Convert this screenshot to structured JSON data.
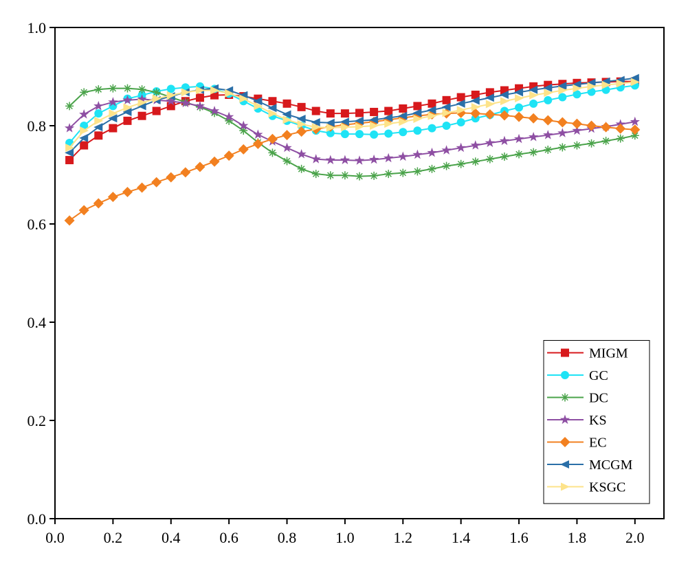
{
  "chart_data": {
    "type": "line",
    "x": [
      0.05,
      0.1,
      0.15,
      0.2,
      0.25,
      0.3,
      0.35,
      0.4,
      0.45,
      0.5,
      0.55,
      0.6,
      0.65,
      0.7,
      0.75,
      0.8,
      0.85,
      0.9,
      0.95,
      1.0,
      1.05,
      1.1,
      1.15,
      1.2,
      1.25,
      1.3,
      1.35,
      1.4,
      1.45,
      1.5,
      1.55,
      1.6,
      1.65,
      1.7,
      1.75,
      1.8,
      1.85,
      1.9,
      1.95,
      2.0
    ],
    "series": [
      {
        "name": "MIGM",
        "color": "#d7191c",
        "marker": "square",
        "values": [
          0.73,
          0.76,
          0.78,
          0.795,
          0.81,
          0.82,
          0.83,
          0.84,
          0.85,
          0.857,
          0.862,
          0.863,
          0.86,
          0.855,
          0.85,
          0.845,
          0.838,
          0.83,
          0.825,
          0.825,
          0.826,
          0.828,
          0.83,
          0.835,
          0.84,
          0.845,
          0.852,
          0.858,
          0.863,
          0.868,
          0.872,
          0.876,
          0.88,
          0.883,
          0.885,
          0.887,
          0.888,
          0.889,
          0.89,
          0.89
        ]
      },
      {
        "name": "GC",
        "color": "#1ee3f5",
        "marker": "circle",
        "values": [
          0.765,
          0.8,
          0.825,
          0.84,
          0.855,
          0.862,
          0.87,
          0.875,
          0.878,
          0.88,
          0.875,
          0.865,
          0.85,
          0.835,
          0.82,
          0.81,
          0.8,
          0.79,
          0.785,
          0.783,
          0.783,
          0.782,
          0.784,
          0.787,
          0.79,
          0.795,
          0.8,
          0.807,
          0.815,
          0.822,
          0.83,
          0.837,
          0.845,
          0.852,
          0.858,
          0.864,
          0.869,
          0.873,
          0.878,
          0.882
        ]
      },
      {
        "name": "DC",
        "color": "#4aa34a",
        "marker": "asterisk",
        "values": [
          0.84,
          0.868,
          0.874,
          0.876,
          0.876,
          0.874,
          0.868,
          0.858,
          0.848,
          0.838,
          0.826,
          0.81,
          0.79,
          0.766,
          0.745,
          0.728,
          0.712,
          0.702,
          0.699,
          0.699,
          0.697,
          0.698,
          0.702,
          0.704,
          0.707,
          0.712,
          0.718,
          0.722,
          0.727,
          0.732,
          0.737,
          0.742,
          0.746,
          0.751,
          0.756,
          0.76,
          0.764,
          0.769,
          0.774,
          0.78
        ]
      },
      {
        "name": "KS",
        "color": "#8e4fa3",
        "marker": "star",
        "values": [
          0.795,
          0.823,
          0.84,
          0.848,
          0.852,
          0.854,
          0.852,
          0.85,
          0.846,
          0.84,
          0.83,
          0.818,
          0.8,
          0.782,
          0.768,
          0.755,
          0.742,
          0.732,
          0.73,
          0.73,
          0.729,
          0.731,
          0.734,
          0.737,
          0.741,
          0.745,
          0.75,
          0.755,
          0.76,
          0.765,
          0.769,
          0.773,
          0.777,
          0.781,
          0.785,
          0.79,
          0.794,
          0.798,
          0.803,
          0.808
        ]
      },
      {
        "name": "EC",
        "color": "#f28020",
        "marker": "diamond",
        "values": [
          0.607,
          0.628,
          0.642,
          0.655,
          0.665,
          0.674,
          0.685,
          0.695,
          0.705,
          0.716,
          0.727,
          0.739,
          0.752,
          0.763,
          0.773,
          0.781,
          0.788,
          0.793,
          0.798,
          0.802,
          0.805,
          0.808,
          0.812,
          0.816,
          0.82,
          0.823,
          0.825,
          0.826,
          0.825,
          0.823,
          0.821,
          0.818,
          0.815,
          0.811,
          0.807,
          0.804,
          0.8,
          0.797,
          0.794,
          0.792
        ]
      },
      {
        "name": "MCGM",
        "color": "#2a6fa8",
        "marker": "triangle-left",
        "values": [
          0.745,
          0.775,
          0.797,
          0.815,
          0.828,
          0.84,
          0.852,
          0.86,
          0.868,
          0.873,
          0.876,
          0.872,
          0.862,
          0.85,
          0.836,
          0.823,
          0.814,
          0.807,
          0.806,
          0.808,
          0.81,
          0.812,
          0.816,
          0.82,
          0.826,
          0.832,
          0.838,
          0.845,
          0.851,
          0.857,
          0.863,
          0.868,
          0.873,
          0.877,
          0.881,
          0.884,
          0.887,
          0.89,
          0.893,
          0.897
        ]
      },
      {
        "name": "KSGC",
        "color": "#fde38a",
        "marker": "triangle-right",
        "values": [
          0.755,
          0.79,
          0.81,
          0.825,
          0.837,
          0.847,
          0.855,
          0.862,
          0.868,
          0.872,
          0.872,
          0.866,
          0.855,
          0.84,
          0.825,
          0.812,
          0.803,
          0.797,
          0.796,
          0.797,
          0.798,
          0.8,
          0.804,
          0.808,
          0.814,
          0.82,
          0.826,
          0.832,
          0.838,
          0.844,
          0.85,
          0.856,
          0.862,
          0.867,
          0.872,
          0.876,
          0.88,
          0.883,
          0.886,
          0.889
        ]
      }
    ],
    "xlim": [
      0,
      2.1
    ],
    "ylim": [
      0,
      1
    ],
    "xticks": [
      {
        "value": 0,
        "label": "0.0"
      },
      0.2,
      0.4,
      0.6,
      0.8,
      {
        "value": 1,
        "label": "1.0"
      },
      1.2,
      1.4,
      1.6,
      1.8,
      {
        "value": 2,
        "label": "2.0"
      }
    ],
    "yticks": [
      {
        "value": 0,
        "label": "0.0"
      },
      0.2,
      0.4,
      0.6,
      0.8,
      {
        "value": 1,
        "label": "1.0"
      }
    ],
    "legend": "lower right"
  }
}
